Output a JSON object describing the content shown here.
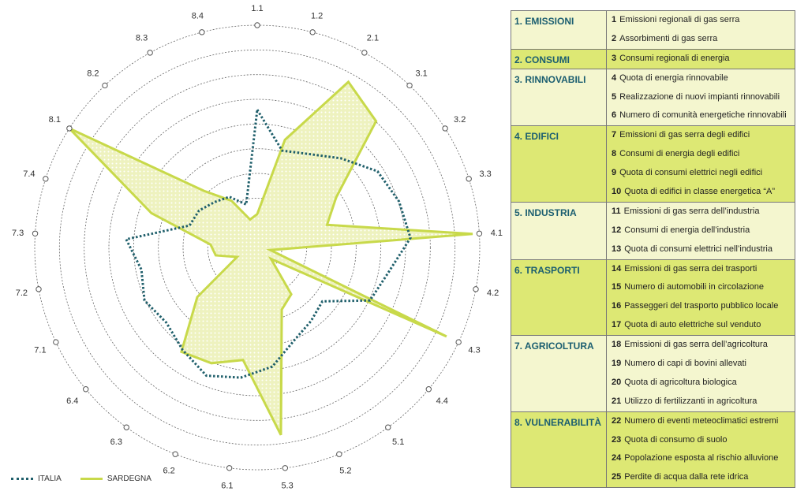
{
  "chart_data": {
    "type": "radar",
    "axes": [
      "1.1",
      "1.2",
      "2.1",
      "3.1",
      "3.2",
      "3.3",
      "4.1",
      "4.2",
      "4.3",
      "4.4",
      "5.1",
      "5.2",
      "5.3",
      "6.1",
      "6.2",
      "6.3",
      "6.4",
      "7.1",
      "7.2",
      "7.3",
      "7.4",
      "8.1",
      "8.2",
      "8.3",
      "8.4"
    ],
    "rings": 9,
    "series": [
      {
        "name": "ITALIA",
        "style": "dotted",
        "color": "#1f5f6b",
        "values": [
          0.62,
          0.45,
          0.48,
          0.55,
          0.64,
          0.67,
          0.69,
          0.6,
          0.56,
          0.38,
          0.41,
          0.45,
          0.54,
          0.59,
          0.62,
          0.57,
          0.53,
          0.56,
          0.53,
          0.59,
          0.32,
          0.31,
          0.28,
          0.26,
          0.2
        ]
      },
      {
        "name": "SARDEGNA",
        "style": "solid",
        "color": "#c8d94a",
        "values": [
          0.15,
          0.5,
          0.85,
          0.78,
          0.42,
          0.33,
          0.97,
          0.06,
          0.94,
          0.08,
          0.26,
          0.3,
          0.85,
          0.51,
          0.56,
          0.58,
          0.35,
          0.1,
          0.19,
          0.21,
          0.5,
          1.0,
          0.35,
          0.24,
          0.13
        ]
      }
    ]
  },
  "legend": {
    "italia": "ITALIA",
    "sardegna": "SARDEGNA"
  },
  "table": [
    {
      "category": "1. EMISSIONI",
      "shade": "light",
      "items": [
        {
          "num": "1",
          "text": "Emissioni regionali di gas serra"
        },
        {
          "num": "2",
          "text": "Assorbimenti di gas serra"
        }
      ]
    },
    {
      "category": "2. CONSUMI",
      "shade": "dark",
      "items": [
        {
          "num": "3",
          "text": "Consumi regionali di energia"
        }
      ]
    },
    {
      "category": "3. RINNOVABILI",
      "shade": "light",
      "items": [
        {
          "num": "4",
          "text": "Quota di energia rinnovabile"
        },
        {
          "num": "5",
          "text": "Realizzazione di nuovi impianti rinnovabili"
        },
        {
          "num": "6",
          "text": "Numero di comunità energetiche rinnovabili"
        }
      ]
    },
    {
      "category": "4. EDIFICI",
      "shade": "dark",
      "items": [
        {
          "num": "7",
          "text": "Emissioni di gas serra degli edifici"
        },
        {
          "num": "8",
          "text": "Consumi di energia degli edifici"
        },
        {
          "num": "9",
          "text": "Quota di consumi elettrici negli edifici"
        },
        {
          "num": "10",
          "text": "Quota di edifici in classe energetica “A”"
        }
      ]
    },
    {
      "category": "5. INDUSTRIA",
      "shade": "light",
      "items": [
        {
          "num": "11",
          "text": "Emissioni di gas serra dell’industria"
        },
        {
          "num": "12",
          "text": "Consumi di energia dell’industria"
        },
        {
          "num": "13",
          "text": "Quota di consumi elettrici nell’industria"
        }
      ]
    },
    {
      "category": "6. TRASPORTI",
      "shade": "dark",
      "items": [
        {
          "num": "14",
          "text": "Emissioni di gas serra dei trasporti"
        },
        {
          "num": "15",
          "text": "Numero di automobili in circolazione"
        },
        {
          "num": "16",
          "text": "Passeggeri del trasporto pubblico locale"
        },
        {
          "num": "17",
          "text": "Quota di auto elettriche sul venduto"
        }
      ]
    },
    {
      "category": "7. AGRICOLTURA",
      "shade": "light",
      "items": [
        {
          "num": "18",
          "text": "Emissioni di gas serra dell’agricoltura"
        },
        {
          "num": "19",
          "text": "Numero di capi di bovini allevati"
        },
        {
          "num": "20",
          "text": "Quota di agricoltura biologica"
        },
        {
          "num": "21",
          "text": "Utilizzo di fertilizzanti in agricoltura"
        }
      ]
    },
    {
      "category": "8. VULNERABILITÀ",
      "shade": "dark",
      "items": [
        {
          "num": "22",
          "text": "Numero di eventi meteoclimatici estremi"
        },
        {
          "num": "23",
          "text": "Quota di consumo di suolo"
        },
        {
          "num": "24",
          "text": "Popolazione esposta al rischio alluvione"
        },
        {
          "num": "25",
          "text": "Perdite di acqua dalla rete idrica"
        }
      ]
    }
  ]
}
